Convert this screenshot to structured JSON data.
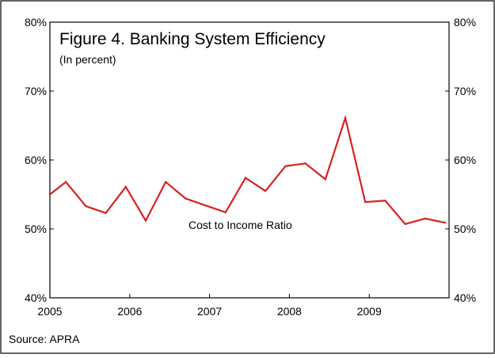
{
  "chart_data": {
    "type": "line",
    "title": "Figure 4. Banking System Efficiency",
    "subtitle": "(In percent)",
    "source": "Source: APRA",
    "annotation": "Cost to Income Ratio",
    "y_ticks": [
      "40%",
      "50%",
      "60%",
      "70%",
      "80%"
    ],
    "y_tick_values": [
      40,
      50,
      60,
      70,
      80
    ],
    "x_ticks": [
      "2005",
      "2006",
      "2007",
      "2008",
      "2009"
    ],
    "x_tick_values": [
      2005,
      2006,
      2007,
      2008,
      2009
    ],
    "xlim": [
      2005,
      2010
    ],
    "ylim": [
      40,
      80
    ],
    "grid": false,
    "colors": {
      "line": "#d92020",
      "axis": "#000000",
      "background": "#ffffff"
    },
    "series": [
      {
        "color": "#d92020",
        "x": [
          2005.0,
          2005.2,
          2005.45,
          2005.7,
          2005.95,
          2006.2,
          2006.45,
          2006.7,
          2006.95,
          2007.2,
          2007.45,
          2007.7,
          2007.95,
          2008.2,
          2008.45,
          2008.7,
          2008.95,
          2009.2,
          2009.45,
          2009.7,
          2009.95
        ],
        "y": [
          55.0,
          56.8,
          53.3,
          52.3,
          56.1,
          51.2,
          56.8,
          54.4,
          53.4,
          52.4,
          57.4,
          55.5,
          59.1,
          59.5,
          57.2,
          66.1,
          53.9,
          54.1,
          50.7,
          51.5,
          50.9
        ]
      }
    ]
  }
}
